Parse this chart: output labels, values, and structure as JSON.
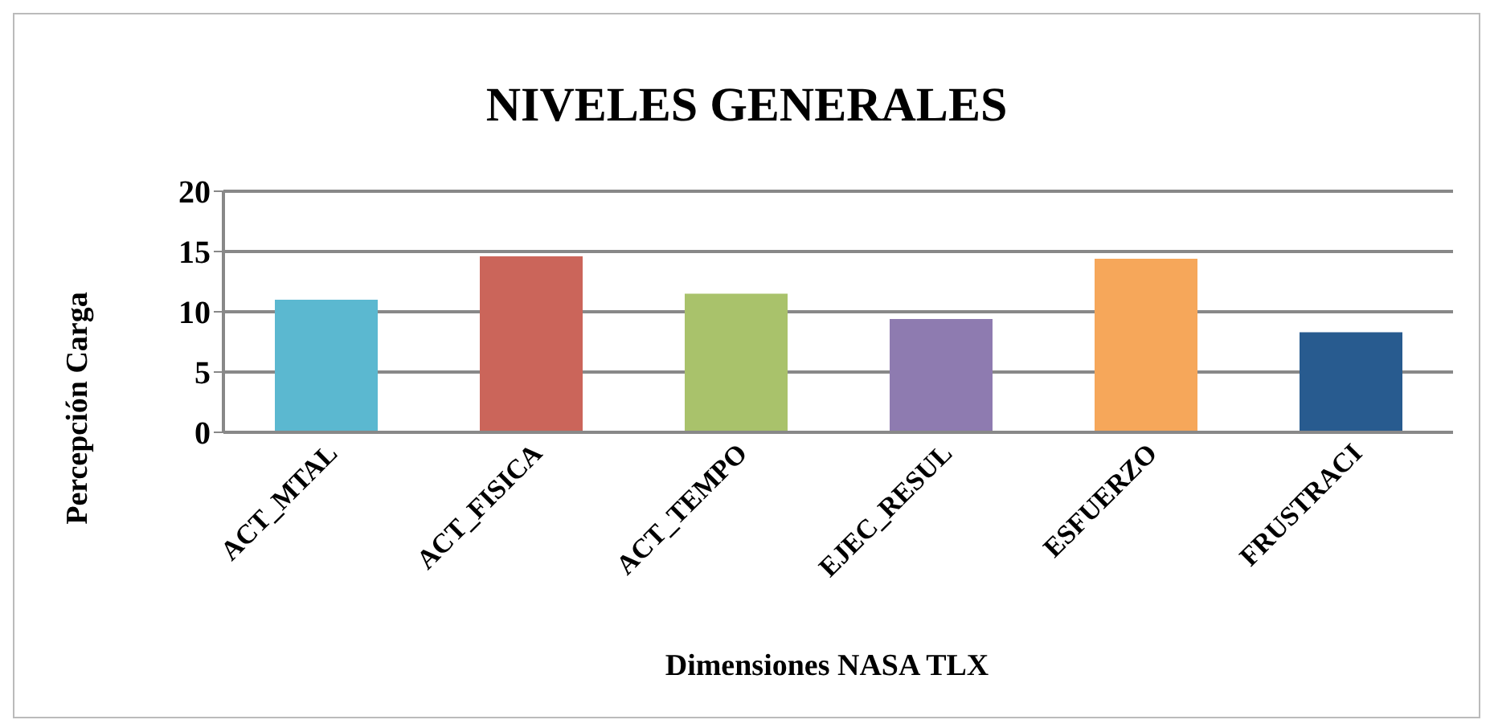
{
  "chart_data": {
    "type": "bar",
    "title": "NIVELES GENERALES",
    "xlabel": "Dimensiones NASA TLX",
    "ylabel": "Percepción Carga",
    "categories": [
      "ACT_MTAL",
      "ACT_FISICA",
      "ACT_TEMPO",
      "EJEC_RESUL",
      "ESFUERZO",
      "FRUSTRACI"
    ],
    "values": [
      11.0,
      14.6,
      11.5,
      9.4,
      14.4,
      8.3
    ],
    "colors": [
      "#5bb8d0",
      "#cb655a",
      "#a9c26b",
      "#8e7bb0",
      "#f6a75a",
      "#285b8f"
    ],
    "ylim": [
      0,
      20
    ],
    "yticks": [
      0,
      5,
      10,
      15,
      20
    ],
    "grid": "y"
  }
}
